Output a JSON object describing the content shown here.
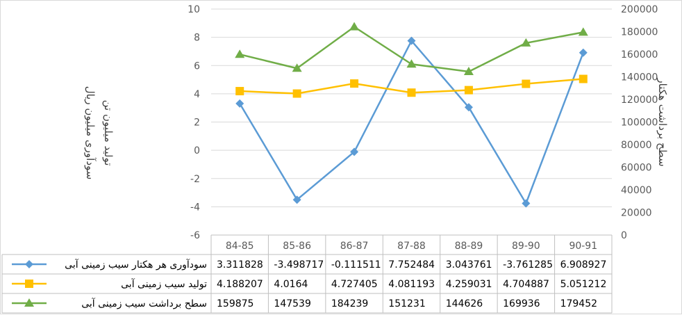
{
  "chart_data": {
    "type": "line",
    "categories": [
      "84-85",
      "85-86",
      "86-87",
      "87-88",
      "88-89",
      "89-90",
      "90-91"
    ],
    "y_left": {
      "ylim": [
        -6,
        10
      ],
      "ticks": [
        "10",
        "8",
        "6",
        "4",
        "2",
        "0",
        "-2",
        "-4",
        "-6"
      ],
      "title_lines": [
        "سودآوری میلیون ریال",
        "تولید میلیون تن"
      ]
    },
    "y_right": {
      "ylim": [
        0,
        200000
      ],
      "ticks": [
        "200000",
        "180000",
        "160000",
        "140000",
        "120000",
        "100000",
        "80000",
        "60000",
        "40000",
        "20000",
        "0"
      ],
      "title": "سطح برداشت هکتار"
    },
    "grid": true,
    "legend": "data-table",
    "series": [
      {
        "name": "سودآوری هر هکتار سیب زمینی آبی",
        "axis": "left",
        "color": "#5b9bd5",
        "marker": "diamond",
        "values": [
          3.311828,
          -3.498717,
          -0.111511,
          7.752484,
          3.043761,
          -3.761285,
          6.908927
        ],
        "labels": [
          "3.311828",
          "-3.498717",
          "-0.111511",
          "7.752484",
          "3.043761",
          "-3.761285",
          "6.908927"
        ]
      },
      {
        "name": "تولید سیب زمینی آبی",
        "axis": "left",
        "color": "#ffc000",
        "marker": "square",
        "values": [
          4.188207,
          4.0164,
          4.727405,
          4.081193,
          4.259031,
          4.704887,
          5.051212
        ],
        "labels": [
          "4.188207",
          "4.0164",
          "4.727405",
          "4.081193",
          "4.259031",
          "4.704887",
          "5.051212"
        ]
      },
      {
        "name": "سطح برداشت سیب زمینی آبی",
        "axis": "right",
        "color": "#70ad47",
        "marker": "triangle",
        "values": [
          159875,
          147539,
          184239,
          151231,
          144626,
          169936,
          179452
        ],
        "labels": [
          "159875",
          "147539",
          "184239",
          "151231",
          "144626",
          "169936",
          "179452"
        ]
      }
    ]
  }
}
